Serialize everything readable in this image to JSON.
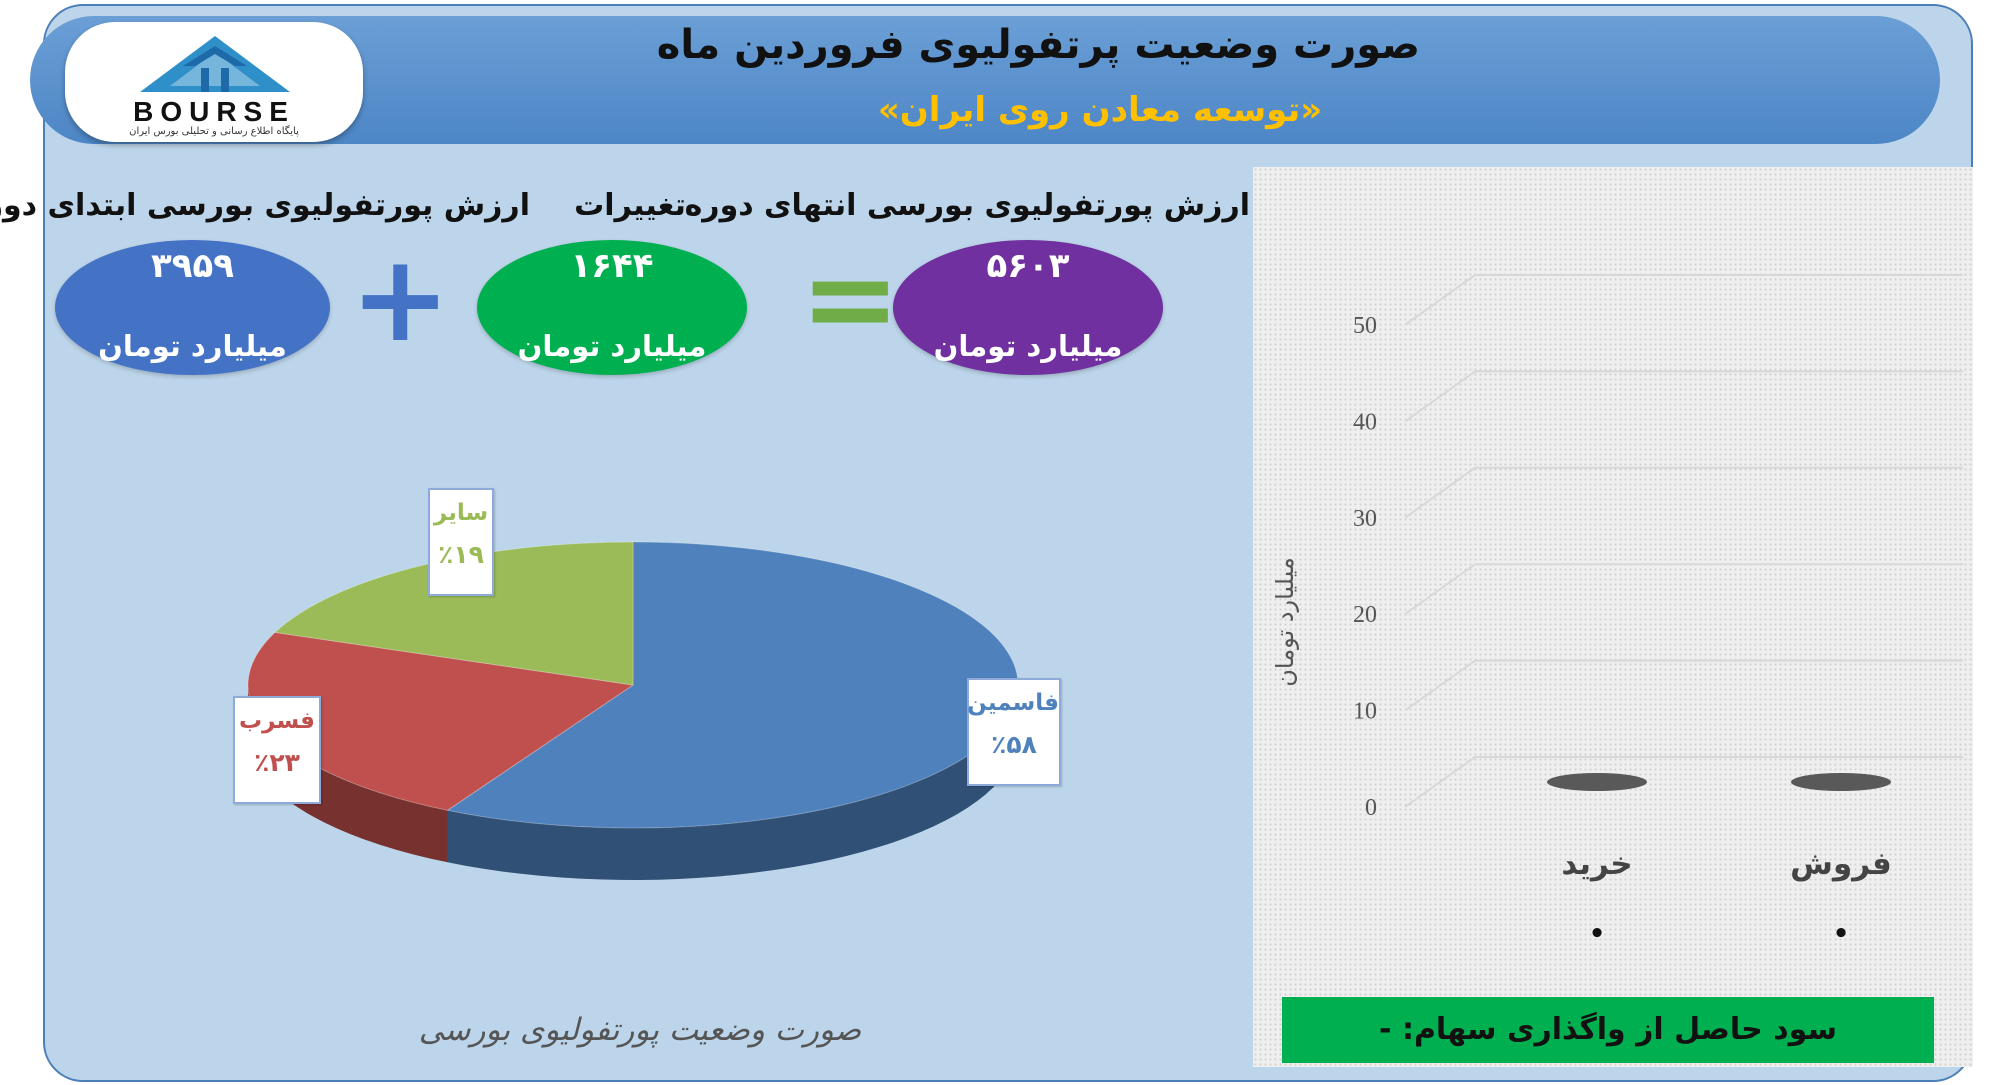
{
  "header": {
    "title": "صورت وضعیت پرتفولیوی فروردین ماه",
    "subtitle": "«توسعه معادن روی ایران»"
  },
  "logo": {
    "text": "BOURSE",
    "subtitle": "پایگاه اطلاع رسانی و تحلیلی بورس ایران"
  },
  "summary": {
    "start": {
      "label": "ارزش پورتفولیوی بورسی ابتدای دوره",
      "value": "۳۹۵۹",
      "unit": "میلیارد تومان",
      "color": "#4472c4"
    },
    "plus_symbol": "+",
    "change": {
      "label": "تغییرات",
      "value": "۱۶۴۴",
      "unit": "میلیارد تومان",
      "color": "#00b050"
    },
    "equals_symbol": "=",
    "end": {
      "label": "ارزش پورتفولیوی بورسی انتهای دوره",
      "value": "۵۶۰۳",
      "unit": "میلیارد تومان",
      "color": "#7030a0"
    }
  },
  "chart_data": [
    {
      "type": "pie",
      "title": "صورت وضعیت پورتفولیوی بورسی",
      "slices": [
        {
          "name": "فاسمین",
          "label": "٪۵۸",
          "value": 58,
          "color": "#4f81bd"
        },
        {
          "name": "فسرب",
          "label": "٪۲۳",
          "value": 23,
          "color": "#c0504d"
        },
        {
          "name": "سایر",
          "label": "٪۱۹",
          "value": 19,
          "color": "#9bbb59"
        }
      ]
    },
    {
      "type": "bar",
      "ylabel": "میلیارد تومان",
      "ylim": [
        0,
        50
      ],
      "yticks": [
        "0",
        "10",
        "20",
        "30",
        "40",
        "50"
      ],
      "categories": [
        "فروش",
        "خرید"
      ],
      "values": [
        0,
        0
      ],
      "data_labels": [
        "•",
        "•"
      ],
      "color": "#595959"
    }
  ],
  "footer": {
    "label": "سود حاصل از واگذاری سهام: -"
  }
}
